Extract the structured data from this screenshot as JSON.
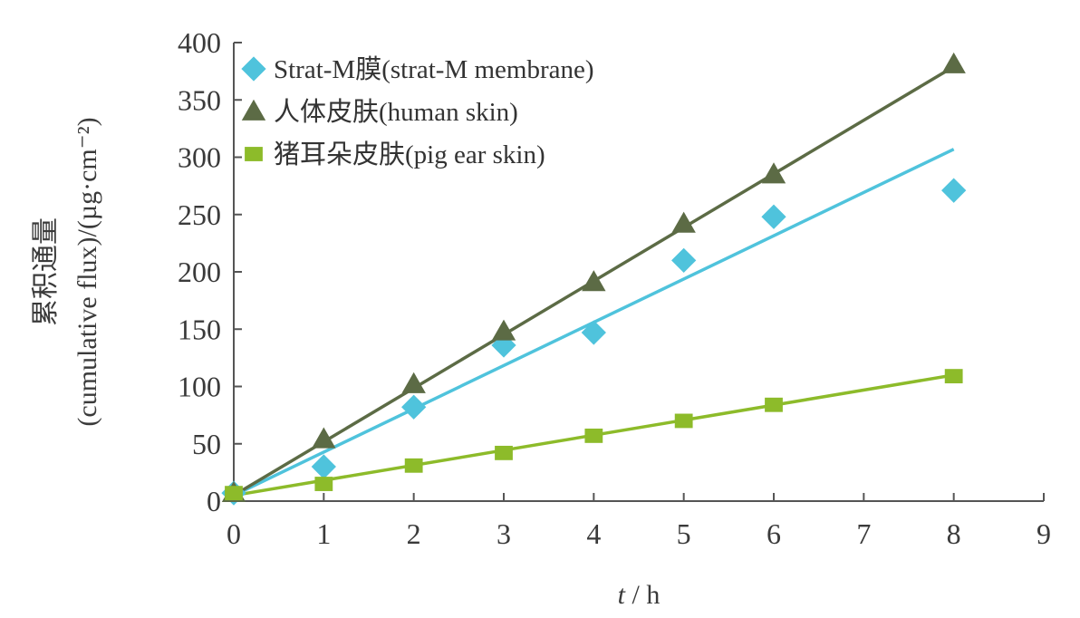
{
  "chart_data": {
    "type": "scatter",
    "title": "",
    "xlabel_var": "t",
    "xlabel_unit": " / h",
    "ylabel_line1": "累积通量",
    "ylabel_line2": "(cumulative flux)/(µg·cm⁻²)",
    "xlim": [
      0,
      9
    ],
    "ylim": [
      0,
      400
    ],
    "xticks": [
      0,
      1,
      2,
      3,
      4,
      5,
      6,
      7,
      8,
      9
    ],
    "yticks": [
      0,
      50,
      100,
      150,
      200,
      250,
      300,
      350,
      400
    ],
    "grid": false,
    "legend_position": "top-left",
    "series": [
      {
        "name": "Strat-M膜(strat-M membrane)",
        "marker": "diamond",
        "color": "#4fc3dc",
        "x": [
          0,
          1,
          2,
          3,
          4,
          5,
          6,
          8
        ],
        "y": [
          7,
          30,
          82,
          136,
          147,
          210,
          248,
          271
        ],
        "fit": {
          "x": [
            0,
            8
          ],
          "y": [
            5,
            307
          ]
        }
      },
      {
        "name": "人体皮肤(human skin)",
        "marker": "triangle",
        "color": "#5c6b45",
        "x": [
          0,
          1,
          2,
          3,
          4,
          5,
          6,
          8
        ],
        "y": [
          7,
          54,
          102,
          148,
          191,
          242,
          285,
          381
        ],
        "fit": {
          "x": [
            0,
            8
          ],
          "y": [
            5,
            379
          ]
        }
      },
      {
        "name": "猪耳朵皮肤(pig ear skin)",
        "marker": "square",
        "color": "#8dbb2a",
        "x": [
          0,
          1,
          2,
          3,
          4,
          5,
          6,
          8
        ],
        "y": [
          7,
          15,
          31,
          42,
          57,
          70,
          84,
          109
        ],
        "fit": {
          "x": [
            0,
            8
          ],
          "y": [
            5,
            110
          ]
        }
      }
    ]
  }
}
